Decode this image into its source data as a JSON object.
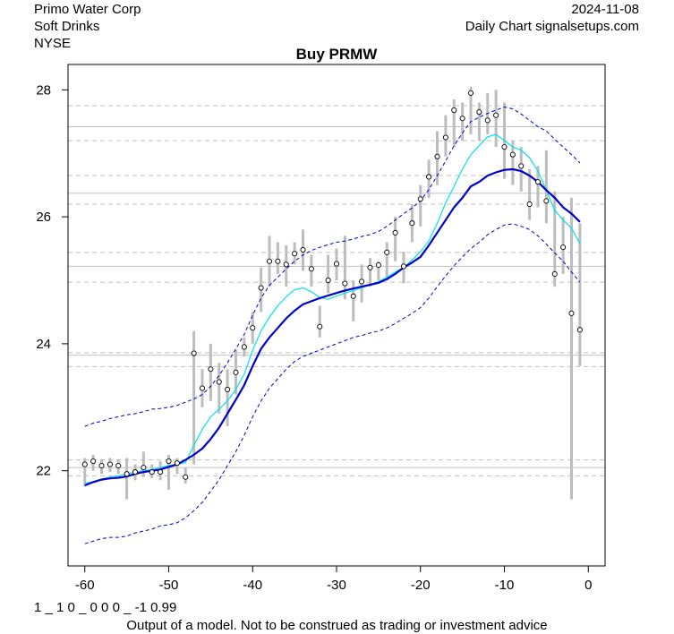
{
  "header": {
    "company": "Primo Water Corp",
    "sector": "Soft Drinks",
    "exchange": "NYSE",
    "date": "2024-11-08",
    "source": "Daily Chart signalsetups.com"
  },
  "footer": {
    "code": "1 _ 1 0 _ 0 0 0 _ -1 0.99",
    "disclaimer": "Output of a model. Not to be construed as trading or investment advice"
  },
  "chart_data": {
    "type": "line",
    "title": "Buy PRMW",
    "xlabel": "",
    "ylabel": "",
    "xlim": [
      -62,
      2
    ],
    "ylim": [
      20.5,
      28.4
    ],
    "x_ticks": [
      -60,
      -50,
      -40,
      -30,
      -20,
      -10,
      0
    ],
    "y_ticks": [
      22,
      24,
      26,
      28
    ],
    "grid": false,
    "horizontal_lines": {
      "solid": [
        22.05,
        23.82,
        25.22,
        26.37,
        27.42
      ],
      "dashed": [
        21.92,
        22.17,
        23.64,
        23.86,
        24.97,
        25.44,
        26.2,
        26.65,
        27.2,
        27.75
      ]
    },
    "x": [
      -60,
      -59,
      -58,
      -57,
      -56,
      -55,
      -54,
      -53,
      -52,
      -51,
      -50,
      -49,
      -48,
      -47,
      -46,
      -45,
      -44,
      -43,
      -42,
      -41,
      -40,
      -39,
      -38,
      -37,
      -36,
      -35,
      -34,
      -33,
      -32,
      -31,
      -30,
      -29,
      -28,
      -27,
      -26,
      -25,
      -24,
      -23,
      -22,
      -21,
      -20,
      -19,
      -18,
      -17,
      -16,
      -15,
      -14,
      -13,
      -12,
      -11,
      -10,
      -9,
      -8,
      -7,
      -6,
      -5,
      -4,
      -3,
      -2,
      -1
    ],
    "close": [
      22.1,
      22.15,
      22.08,
      22.1,
      22.08,
      21.95,
      21.98,
      22.05,
      21.98,
      21.98,
      22.15,
      22.12,
      21.9,
      23.85,
      23.3,
      23.6,
      23.4,
      23.28,
      23.55,
      23.95,
      24.25,
      24.88,
      25.3,
      25.3,
      25.25,
      25.42,
      25.48,
      25.18,
      24.27,
      25.0,
      25.26,
      24.95,
      24.75,
      24.98,
      25.2,
      25.24,
      25.44,
      25.75,
      25.22,
      25.9,
      26.28,
      26.63,
      26.95,
      27.25,
      27.68,
      27.55,
      27.95,
      27.65,
      27.52,
      27.6,
      27.1,
      26.98,
      26.8,
      26.2,
      26.55,
      26.25,
      25.1,
      25.52,
      24.48,
      24.22
    ],
    "high": [
      22.2,
      22.25,
      22.18,
      22.2,
      22.18,
      22.2,
      22.1,
      22.3,
      22.1,
      22.15,
      22.25,
      22.2,
      22.05,
      24.2,
      23.6,
      24.0,
      23.7,
      23.6,
      23.9,
      24.1,
      24.5,
      25.2,
      25.7,
      25.6,
      25.55,
      25.6,
      25.8,
      25.4,
      24.6,
      25.4,
      25.5,
      25.7,
      25.0,
      25.25,
      25.35,
      25.3,
      25.6,
      26.0,
      25.45,
      26.2,
      26.5,
      26.9,
      27.35,
      27.6,
      27.85,
      27.8,
      28.05,
      27.8,
      27.95,
      28.0,
      27.8,
      27.2,
      27.1,
      26.75,
      26.8,
      27.05,
      26.4,
      26.0,
      26.3,
      25.9
    ],
    "low": [
      21.75,
      22.0,
      21.95,
      21.98,
      21.95,
      21.55,
      21.85,
      21.9,
      21.88,
      21.85,
      21.7,
      21.95,
      21.8,
      22.1,
      23.0,
      23.1,
      22.9,
      22.7,
      23.2,
      23.8,
      24.0,
      24.5,
      24.9,
      25.1,
      24.9,
      25.25,
      25.15,
      24.9,
      24.1,
      24.8,
      25.0,
      24.7,
      24.35,
      24.65,
      24.9,
      25.0,
      25.0,
      25.3,
      24.95,
      25.6,
      25.85,
      26.3,
      26.5,
      26.95,
      27.1,
      27.2,
      27.3,
      27.2,
      27.3,
      27.1,
      26.6,
      26.5,
      26.4,
      25.95,
      26.15,
      25.9,
      24.9,
      25.1,
      21.55,
      23.65
    ],
    "series": [
      {
        "name": "fast_ma",
        "color": "#00e5ee",
        "values": [
          21.8,
          21.83,
          21.87,
          21.9,
          21.92,
          21.95,
          21.98,
          22.0,
          22.02,
          22.05,
          22.08,
          22.1,
          22.13,
          22.4,
          22.65,
          22.85,
          22.97,
          23.1,
          23.28,
          23.52,
          23.9,
          24.2,
          24.42,
          24.6,
          24.74,
          24.85,
          24.88,
          24.82,
          24.73,
          24.7,
          24.75,
          24.8,
          24.84,
          24.88,
          24.93,
          24.98,
          25.05,
          25.13,
          25.2,
          25.32,
          25.45,
          25.62,
          25.9,
          26.22,
          26.48,
          26.75,
          26.98,
          27.12,
          27.26,
          27.3,
          27.2,
          27.1,
          27.05,
          26.93,
          26.72,
          26.42,
          26.1,
          25.95,
          25.82,
          25.58
        ]
      },
      {
        "name": "slow_ma",
        "color": "#0000cd",
        "values": [
          21.77,
          21.82,
          21.86,
          21.88,
          21.89,
          21.91,
          21.95,
          21.98,
          22.0,
          22.02,
          22.06,
          22.1,
          22.17,
          22.25,
          22.35,
          22.5,
          22.68,
          22.9,
          23.12,
          23.35,
          23.65,
          23.92,
          24.1,
          24.25,
          24.4,
          24.52,
          24.62,
          24.67,
          24.72,
          24.76,
          24.8,
          24.84,
          24.87,
          24.9,
          24.93,
          24.96,
          25.02,
          25.1,
          25.2,
          25.28,
          25.37,
          25.55,
          25.75,
          25.95,
          26.15,
          26.3,
          26.48,
          26.55,
          26.65,
          26.7,
          26.74,
          26.75,
          26.72,
          26.65,
          26.55,
          26.42,
          26.3,
          26.15,
          26.05,
          25.92
        ]
      },
      {
        "name": "upper_band",
        "color": "#0000cd",
        "values": [
          22.7,
          22.75,
          22.78,
          22.82,
          22.85,
          22.88,
          22.9,
          22.93,
          22.97,
          22.98,
          23.0,
          23.03,
          23.08,
          23.13,
          23.2,
          23.33,
          23.5,
          23.7,
          23.92,
          24.15,
          24.45,
          24.72,
          24.92,
          25.05,
          25.18,
          25.3,
          25.4,
          25.47,
          25.52,
          25.56,
          25.6,
          25.62,
          25.65,
          25.69,
          25.72,
          25.77,
          25.85,
          25.95,
          26.05,
          26.14,
          26.25,
          26.43,
          26.65,
          26.88,
          27.12,
          27.32,
          27.5,
          27.57,
          27.63,
          27.68,
          27.73,
          27.7,
          27.62,
          27.52,
          27.42,
          27.35,
          27.22,
          27.1,
          26.98,
          26.85
        ]
      },
      {
        "name": "lower_band",
        "color": "#0000cd",
        "values": [
          20.85,
          20.89,
          20.93,
          20.95,
          20.95,
          20.97,
          21.02,
          21.05,
          21.08,
          21.13,
          21.15,
          21.18,
          21.26,
          21.37,
          21.5,
          21.68,
          21.86,
          22.08,
          22.3,
          22.56,
          22.85,
          23.1,
          23.3,
          23.45,
          23.6,
          23.72,
          23.8,
          23.85,
          23.9,
          23.95,
          24.0,
          24.05,
          24.1,
          24.13,
          24.17,
          24.2,
          24.25,
          24.32,
          24.4,
          24.48,
          24.57,
          24.72,
          24.9,
          25.07,
          25.23,
          25.37,
          25.5,
          25.6,
          25.72,
          25.8,
          25.87,
          25.89,
          25.85,
          25.8,
          25.7,
          25.57,
          25.43,
          25.3,
          25.13,
          24.97
        ]
      }
    ]
  }
}
